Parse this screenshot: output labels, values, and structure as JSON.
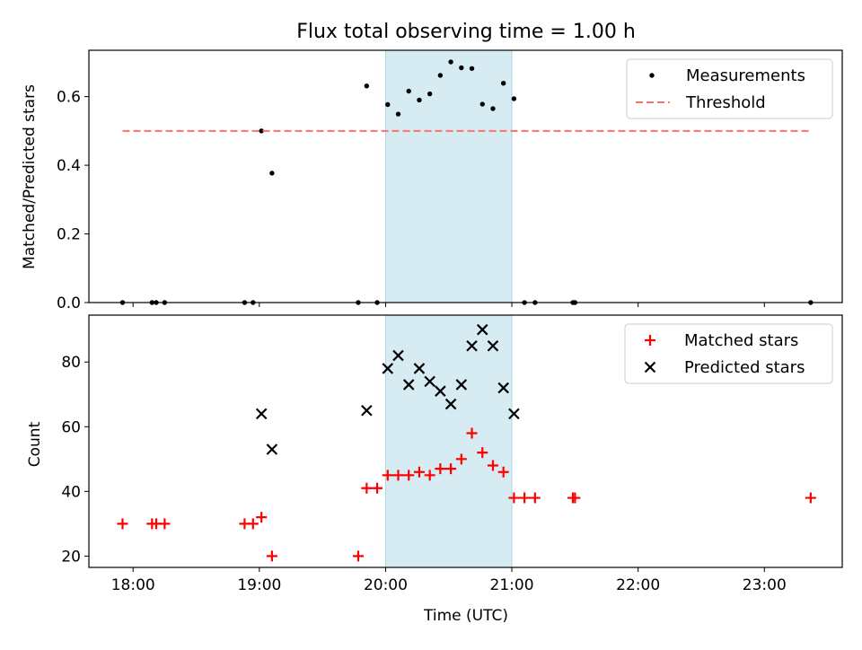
{
  "chart_data": [
    {
      "type": "scatter",
      "title": "Flux total observing time = 1.00 h",
      "xlabel": "",
      "ylabel": "Matched/Predicted stars",
      "xlim": [
        "17:39",
        "23:37"
      ],
      "ylim": [
        0,
        0.735
      ],
      "yticks": [
        0.0,
        0.2,
        0.4,
        0.6
      ],
      "ytick_labels": [
        "0.0",
        "0.2",
        "0.4",
        "0.6"
      ],
      "highlight_span": {
        "start": "20:00",
        "end": "21:00",
        "color": "#add8e6"
      },
      "legend": {
        "position": "top-right"
      },
      "series": [
        {
          "name": "Measurements",
          "kind": "scatter",
          "color": "#000000",
          "points": [
            {
              "x": "17:55",
              "y": 0.0
            },
            {
              "x": "18:09",
              "y": 0.0
            },
            {
              "x": "18:11",
              "y": 0.0
            },
            {
              "x": "18:15",
              "y": 0.0
            },
            {
              "x": "18:53",
              "y": 0.0
            },
            {
              "x": "18:57",
              "y": 0.0
            },
            {
              "x": "19:01",
              "y": 0.5
            },
            {
              "x": "19:06",
              "y": 0.377
            },
            {
              "x": "19:47",
              "y": 0.0
            },
            {
              "x": "19:51",
              "y": 0.631
            },
            {
              "x": "19:56",
              "y": 0.0
            },
            {
              "x": "20:01",
              "y": 0.577
            },
            {
              "x": "20:06",
              "y": 0.549
            },
            {
              "x": "20:11",
              "y": 0.616
            },
            {
              "x": "20:16",
              "y": 0.59
            },
            {
              "x": "20:21",
              "y": 0.608
            },
            {
              "x": "20:26",
              "y": 0.662
            },
            {
              "x": "20:31",
              "y": 0.701
            },
            {
              "x": "20:36",
              "y": 0.684
            },
            {
              "x": "20:41",
              "y": 0.682
            },
            {
              "x": "20:46",
              "y": 0.578
            },
            {
              "x": "20:51",
              "y": 0.565
            },
            {
              "x": "20:56",
              "y": 0.639
            },
            {
              "x": "21:01",
              "y": 0.594
            },
            {
              "x": "21:06",
              "y": 0.0
            },
            {
              "x": "21:11",
              "y": 0.0
            },
            {
              "x": "21:29",
              "y": 0.0
            },
            {
              "x": "21:30",
              "y": 0.0
            },
            {
              "x": "23:22",
              "y": 0.0
            }
          ]
        },
        {
          "name": "Threshold",
          "kind": "line",
          "color": "#ff7070",
          "dash": "dashed",
          "points": [
            {
              "x": "17:55",
              "y": 0.5
            },
            {
              "x": "23:22",
              "y": 0.5
            }
          ]
        }
      ]
    },
    {
      "type": "scatter",
      "title": "",
      "xlabel": "Time (UTC)",
      "ylabel": "Count",
      "xlim": [
        "17:39",
        "23:37"
      ],
      "ylim": [
        16.5,
        94.5
      ],
      "yticks": [
        20,
        40,
        60,
        80
      ],
      "ytick_labels": [
        "20",
        "40",
        "60",
        "80"
      ],
      "xticks": [
        "18:00",
        "19:00",
        "20:00",
        "21:00",
        "22:00",
        "23:00"
      ],
      "xtick_labels": [
        "18:00",
        "19:00",
        "20:00",
        "21:00",
        "22:00",
        "23:00"
      ],
      "highlight_span": {
        "start": "20:00",
        "end": "21:00",
        "color": "#add8e6"
      },
      "legend": {
        "position": "top-right"
      },
      "series": [
        {
          "name": "Matched stars",
          "marker": "plus",
          "color": "#ff0000",
          "points": [
            {
              "x": "17:55",
              "y": 30
            },
            {
              "x": "18:09",
              "y": 30
            },
            {
              "x": "18:11",
              "y": 30
            },
            {
              "x": "18:15",
              "y": 30
            },
            {
              "x": "18:53",
              "y": 30
            },
            {
              "x": "18:57",
              "y": 30
            },
            {
              "x": "19:01",
              "y": 32
            },
            {
              "x": "19:06",
              "y": 20
            },
            {
              "x": "19:47",
              "y": 20
            },
            {
              "x": "19:51",
              "y": 41
            },
            {
              "x": "19:56",
              "y": 41
            },
            {
              "x": "20:01",
              "y": 45
            },
            {
              "x": "20:06",
              "y": 45
            },
            {
              "x": "20:11",
              "y": 45
            },
            {
              "x": "20:16",
              "y": 46
            },
            {
              "x": "20:21",
              "y": 45
            },
            {
              "x": "20:26",
              "y": 47
            },
            {
              "x": "20:31",
              "y": 47
            },
            {
              "x": "20:36",
              "y": 50
            },
            {
              "x": "20:41",
              "y": 58
            },
            {
              "x": "20:46",
              "y": 52
            },
            {
              "x": "20:51",
              "y": 48
            },
            {
              "x": "20:56",
              "y": 46
            },
            {
              "x": "21:01",
              "y": 38
            },
            {
              "x": "21:06",
              "y": 38
            },
            {
              "x": "21:11",
              "y": 38
            },
            {
              "x": "21:29",
              "y": 38
            },
            {
              "x": "21:30",
              "y": 38
            },
            {
              "x": "23:22",
              "y": 38
            }
          ]
        },
        {
          "name": "Predicted stars",
          "marker": "x",
          "color": "#000000",
          "points": [
            {
              "x": "19:01",
              "y": 64
            },
            {
              "x": "19:06",
              "y": 53
            },
            {
              "x": "19:51",
              "y": 65
            },
            {
              "x": "20:01",
              "y": 78
            },
            {
              "x": "20:06",
              "y": 82
            },
            {
              "x": "20:11",
              "y": 73
            },
            {
              "x": "20:16",
              "y": 78
            },
            {
              "x": "20:21",
              "y": 74
            },
            {
              "x": "20:26",
              "y": 71
            },
            {
              "x": "20:31",
              "y": 67
            },
            {
              "x": "20:36",
              "y": 73
            },
            {
              "x": "20:41",
              "y": 85
            },
            {
              "x": "20:46",
              "y": 90
            },
            {
              "x": "20:51",
              "y": 85
            },
            {
              "x": "20:56",
              "y": 72
            },
            {
              "x": "21:01",
              "y": 64
            }
          ]
        }
      ]
    }
  ]
}
